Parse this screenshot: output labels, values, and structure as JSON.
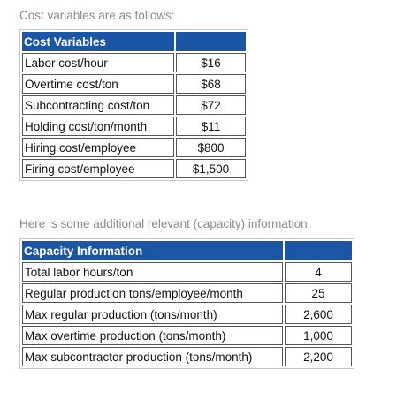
{
  "intro_cost": "Cost variables are as follows:",
  "cost_table": {
    "header": "Cost Variables",
    "header_value": "",
    "rows": [
      {
        "label": "Labor cost/hour",
        "value": "$16"
      },
      {
        "label": "Overtime cost/ton",
        "value": "$68"
      },
      {
        "label": "Subcontracting cost/ton",
        "value": "$72"
      },
      {
        "label": "Holding cost/ton/month",
        "value": "$11"
      },
      {
        "label": "Hiring cost/employee",
        "value": "$800"
      },
      {
        "label": "Firing cost/employee",
        "value": "$1,500"
      }
    ]
  },
  "intro_capacity": "Here is some additional relevant (capacity) information:",
  "capacity_table": {
    "header": "Capacity Information",
    "header_value": "",
    "rows": [
      {
        "label": "Total labor hours/ton",
        "value": "4"
      },
      {
        "label": "Regular production tons/employee/month",
        "value": "25"
      },
      {
        "label": "Max regular production (tons/month)",
        "value": "2,600"
      },
      {
        "label": "Max overtime production (tons/month)",
        "value": "1,000"
      },
      {
        "label": "Max subcontractor production (tons/month)",
        "value": "2,200"
      }
    ]
  },
  "colors": {
    "header_bg": "#1b56a5",
    "header_text": "#ffffff",
    "intro_text": "#8a8a8a"
  }
}
